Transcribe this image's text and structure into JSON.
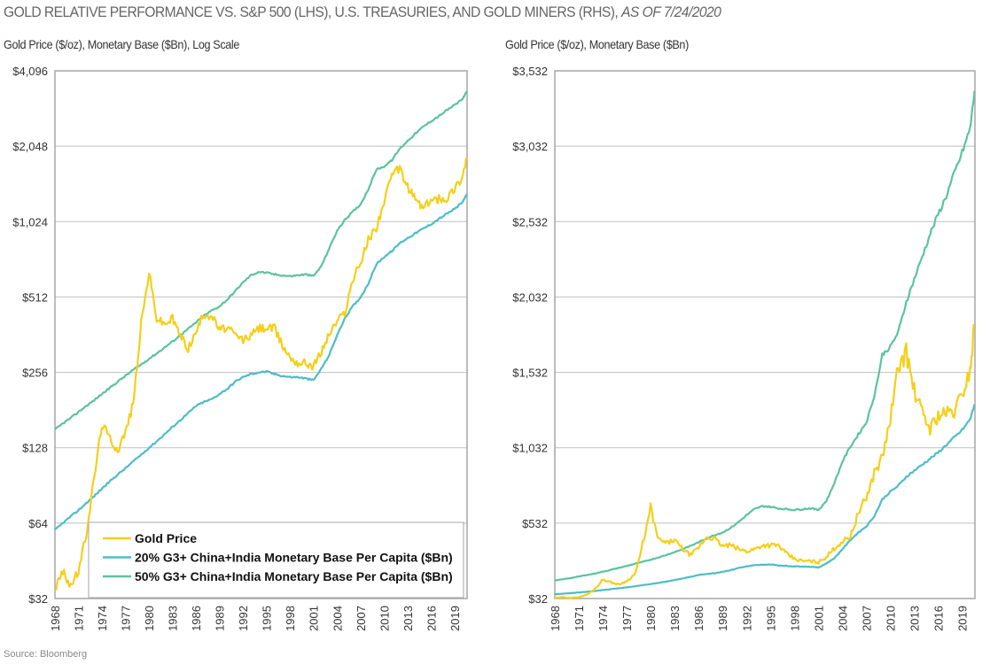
{
  "title": "GOLD RELATIVE PERFORMANCE VS. S&P 500 (LHS), U.S. TREASURIES, AND GOLD MINERS (RHS),",
  "title_italic": "AS OF 7/24/2020",
  "source": "Source: Bloomberg",
  "colors": {
    "gold": "#F5CF1A",
    "base20": "#4DBDC8",
    "base50": "#5CC39D",
    "grid": "#bfbfbf",
    "frame": "#a6a6a6"
  },
  "chart_data": [
    {
      "type": "line",
      "subtitle": "Gold Price ($/oz), Monetary Base ($Bn), Log Scale",
      "yscale": "log2",
      "ylim": [
        32,
        4096
      ],
      "yticks": [
        32,
        64,
        128,
        256,
        512,
        1024,
        2048,
        4096
      ],
      "ytick_labels": [
        "$32",
        "$64",
        "$128",
        "$256",
        "$512",
        "$1,024",
        "$2,048",
        "$4,096"
      ],
      "xlim": [
        1968,
        2020.6
      ],
      "xticks": [
        "1968",
        "1971",
        "1974",
        "1977",
        "1980",
        "1983",
        "1986",
        "1989",
        "1992",
        "1995",
        "1998",
        "2001",
        "2004",
        "2007",
        "2010",
        "2013",
        "2016",
        "2019"
      ],
      "grid": true,
      "legend": {
        "position": "bottom-left",
        "entries": [
          "Gold Price",
          "20% G3+ China+India Monetary Base Per Capita ($Bn)",
          "50% G3+ China+India Monetary Base Per Capita ($Bn)"
        ]
      }
    },
    {
      "type": "line",
      "subtitle": "Gold Price ($/oz), Monetary Base ($Bn)",
      "yscale": "linear",
      "ylim": [
        32,
        3532
      ],
      "yticks": [
        32,
        532,
        1032,
        1532,
        2032,
        2532,
        3032,
        3532
      ],
      "ytick_labels": [
        "$32",
        "$532",
        "$1,032",
        "$1,532",
        "$2,032",
        "$2,532",
        "$3,032",
        "$3,532"
      ],
      "xlim": [
        1968,
        2020.6
      ],
      "xticks": [
        "1968",
        "1971",
        "1974",
        "1977",
        "1980",
        "1983",
        "1986",
        "1989",
        "1992",
        "1995",
        "1998",
        "2001",
        "2004",
        "2007",
        "2010",
        "2013",
        "2016",
        "2019"
      ],
      "grid": true
    }
  ],
  "series": {
    "x": [
      1968,
      1969,
      1970,
      1971,
      1972,
      1973,
      1974,
      1975,
      1976,
      1977,
      1978,
      1979,
      1980,
      1981,
      1982,
      1983,
      1984,
      1985,
      1986,
      1987,
      1988,
      1989,
      1990,
      1991,
      1992,
      1993,
      1994,
      1995,
      1996,
      1997,
      1998,
      1999,
      2000,
      2001,
      2002,
      2003,
      2004,
      2005,
      2006,
      2007,
      2008,
      2009,
      2010,
      2011,
      2012,
      2013,
      2014,
      2015,
      2016,
      2017,
      2018,
      2019,
      2020,
      2020.55
    ],
    "gold": [
      35,
      41,
      36,
      41,
      58,
      97,
      160,
      140,
      125,
      148,
      193,
      400,
      640,
      420,
      400,
      420,
      360,
      320,
      370,
      440,
      430,
      380,
      385,
      360,
      345,
      360,
      385,
      385,
      385,
      330,
      295,
      280,
      280,
      272,
      310,
      365,
      410,
      445,
      600,
      700,
      870,
      970,
      1225,
      1570,
      1670,
      1410,
      1265,
      1160,
      1250,
      1260,
      1270,
      1390,
      1550,
      1850
    ],
    "base20": [
      60,
      64,
      68,
      72,
      77,
      82,
      88,
      94,
      100,
      106,
      113,
      120,
      128,
      136,
      145,
      155,
      165,
      176,
      188,
      195,
      200,
      210,
      220,
      235,
      245,
      252,
      256,
      258,
      252,
      248,
      245,
      245,
      242,
      238,
      265,
      300,
      360,
      420,
      470,
      510,
      580,
      690,
      740,
      780,
      840,
      880,
      920,
      960,
      1000,
      1050,
      1100,
      1150,
      1220,
      1320
    ],
    "base50": [
      151,
      160,
      168,
      178,
      188,
      198,
      210,
      222,
      235,
      248,
      262,
      275,
      290,
      305,
      322,
      340,
      360,
      382,
      405,
      430,
      452,
      470,
      500,
      540,
      585,
      625,
      645,
      640,
      630,
      625,
      620,
      625,
      630,
      620,
      680,
      800,
      940,
      1040,
      1120,
      1200,
      1380,
      1650,
      1700,
      1800,
      2000,
      2150,
      2300,
      2450,
      2580,
      2700,
      2850,
      2990,
      3150,
      3400
    ]
  }
}
